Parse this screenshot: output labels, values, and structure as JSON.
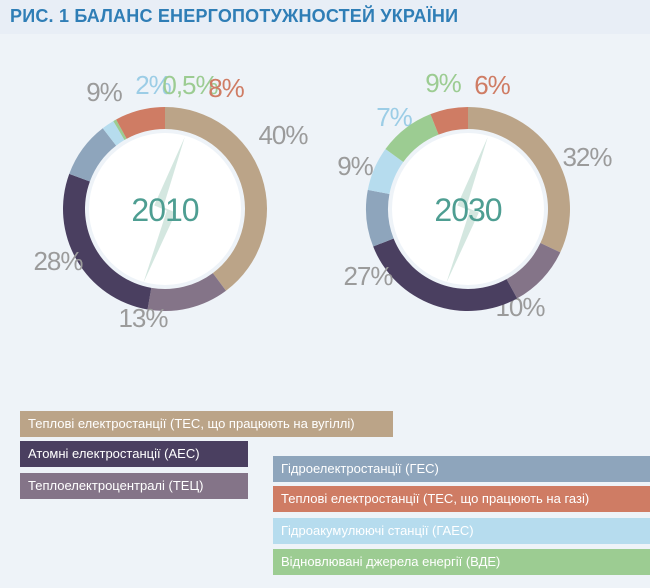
{
  "title": "РИС. 1 БАЛАНС ЕНЕРГОПОТУЖНОСТЕЙ УКРАЇНИ",
  "colors": {
    "coal_tpp": "#bba488",
    "npp": "#4a3f60",
    "chp": "#847488",
    "hpp": "#8ea5bc",
    "gas_tpp": "#cf7c64",
    "pumped": "#b6dcee",
    "renew": "#9ccc92",
    "center_icon": "#d4e7e0",
    "year_text": "#4e9e92",
    "pct_text": "#9b9b9b"
  },
  "chart_data": [
    {
      "type": "pie",
      "variant": "donut",
      "center_label": "2010",
      "series": [
        {
          "name": "Теплові електростанції (ТЕС, що працюють на вугіллі)",
          "key": "coal_tpp",
          "value": 40,
          "label": "40%"
        },
        {
          "name": "Теплоелектроцентралі (ТЕЦ)",
          "key": "chp",
          "value": 13,
          "label": "13%"
        },
        {
          "name": "Атомні електростанції (АЕС)",
          "key": "npp",
          "value": 28,
          "label": "28%"
        },
        {
          "name": "Гідроелектростанції (ГЕС)",
          "key": "hpp",
          "value": 9,
          "label": "9%"
        },
        {
          "name": "Гідроакумулюючі станції (ГАЕС)",
          "key": "pumped",
          "value": 2,
          "label": "2%"
        },
        {
          "name": "Відновлювані джерела енергії (ВДЕ)",
          "key": "renew",
          "value": 0.5,
          "label": "0,5%"
        },
        {
          "name": "Теплові електростанції (ТЕС, що працюють на газі)",
          "key": "gas_tpp",
          "value": 8,
          "label": "8%"
        }
      ]
    },
    {
      "type": "pie",
      "variant": "donut",
      "center_label": "2030",
      "series": [
        {
          "name": "Теплові електростанції (ТЕС, що працюють на вугіллі)",
          "key": "coal_tpp",
          "value": 32,
          "label": "32%"
        },
        {
          "name": "Теплоелектроцентралі (ТЕЦ)",
          "key": "chp",
          "value": 10,
          "label": "10%"
        },
        {
          "name": "Атомні електростанції (АЕС)",
          "key": "npp",
          "value": 27,
          "label": "27%"
        },
        {
          "name": "Гідроелектростанції (ГЕС)",
          "key": "hpp",
          "value": 9,
          "label": "9%"
        },
        {
          "name": "Гідроакумулюючі станції (ГАЕС)",
          "key": "pumped",
          "value": 7,
          "label": "7%"
        },
        {
          "name": "Відновлювані джерела енергії (ВДЕ)",
          "key": "renew",
          "value": 9,
          "label": "9%"
        },
        {
          "name": "Теплові електростанції (ТЕС, що працюють на газі)",
          "key": "gas_tpp",
          "value": 6,
          "label": "6%"
        }
      ]
    }
  ],
  "legend": {
    "coal_tpp": "Теплові електростанції (ТЕС, що працюють на вугіллі)",
    "npp": "Атомні електростанції (АЕС)",
    "chp": "Теплоелектроцентралі (ТЕЦ)",
    "hpp": "Гідроелектростанції (ГЕС)",
    "gas_tpp": "Теплові електростанції (ТЕС, що працюють на газі)",
    "pumped": "Гідроакумулюючі станції (ГАЕС)",
    "renew": "Відновлювані джерела енергії (ВДЕ)"
  }
}
